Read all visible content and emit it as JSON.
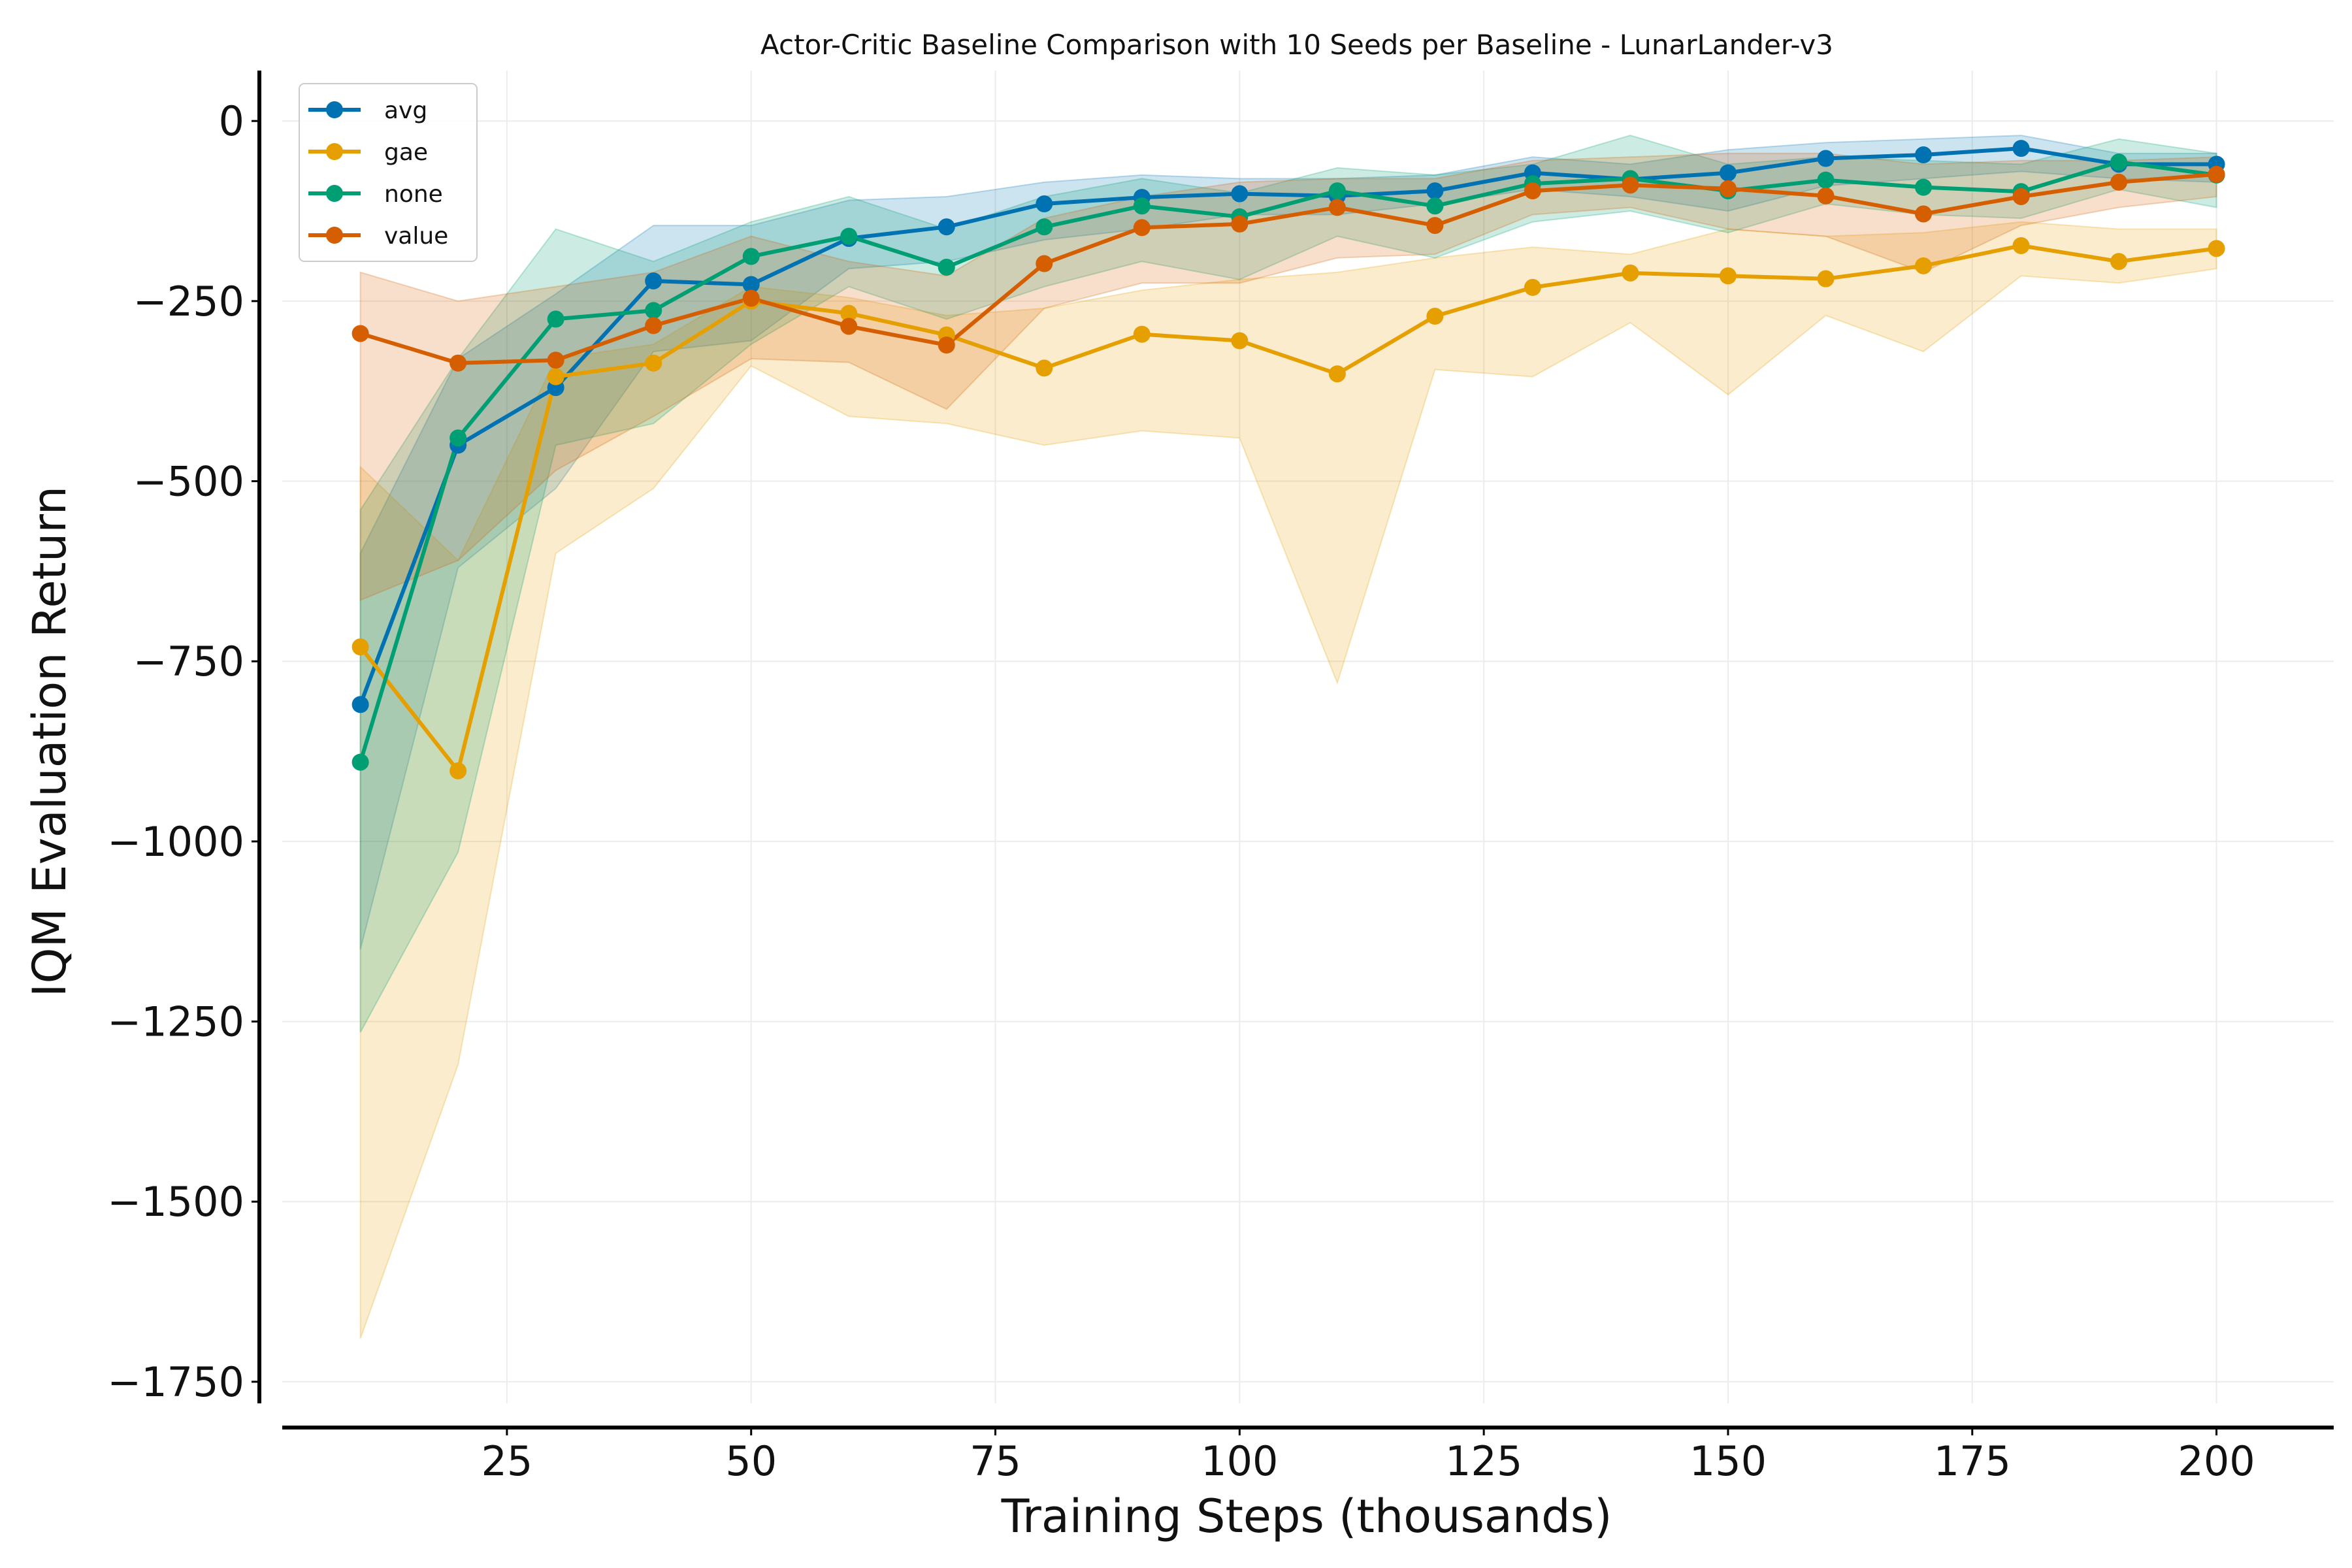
{
  "chart_data": {
    "type": "line",
    "title": "Actor-Critic Baseline Comparison with 10 Seeds per Baseline - LunarLander-v3",
    "xlabel": "Training Steps (thousands)",
    "ylabel": "IQM Evaluation Return",
    "xlim": [
      2,
      212
    ],
    "ylim": [
      -1780,
      70
    ],
    "xticks": [
      25,
      50,
      75,
      100,
      125,
      150,
      175,
      200
    ],
    "yticks": [
      0,
      -250,
      -500,
      -750,
      -1000,
      -1250,
      -1500,
      -1750
    ],
    "xtick_labels": [
      "25",
      "50",
      "75",
      "100",
      "125",
      "150",
      "175",
      "200"
    ],
    "ytick_labels": [
      "0",
      "−250",
      "−500",
      "−750",
      "−1000",
      "−1250",
      "−1500",
      "−1750"
    ],
    "grid": true,
    "legend_position": "top-left",
    "x": [
      10,
      20,
      30,
      40,
      50,
      60,
      70,
      80,
      90,
      100,
      110,
      120,
      130,
      140,
      150,
      160,
      170,
      180,
      190,
      200
    ],
    "series": [
      {
        "name": "avg",
        "color": "#0072b2",
        "values": [
          -810,
          -450,
          -370,
          -222,
          -227,
          -163,
          -147,
          -115,
          -106,
          -101,
          -104,
          -97,
          -72,
          -81,
          -72,
          -52,
          -47,
          -38,
          -60,
          -60
        ],
        "lower": [
          -1150,
          -620,
          -510,
          -320,
          -305,
          -205,
          -195,
          -165,
          -150,
          -130,
          -130,
          -115,
          -95,
          -105,
          -125,
          -90,
          -80,
          -70,
          -80,
          -85
        ],
        "upper": [
          -600,
          -330,
          -240,
          -145,
          -145,
          -110,
          -105,
          -85,
          -75,
          -80,
          -80,
          -75,
          -50,
          -60,
          -40,
          -30,
          -25,
          -20,
          -45,
          -45
        ]
      },
      {
        "name": "gae",
        "color": "#e69f00",
        "values": [
          -730,
          -902,
          -355,
          -336,
          -250,
          -267,
          -297,
          -343,
          -296,
          -305,
          -351,
          -271,
          -231,
          -211,
          -215,
          -219,
          -201,
          -173,
          -195,
          -177
        ],
        "lower": [
          -1690,
          -1310,
          -600,
          -510,
          -340,
          -410,
          -420,
          -450,
          -430,
          -440,
          -780,
          -345,
          -355,
          -280,
          -380,
          -270,
          -320,
          -215,
          -225,
          -205
        ],
        "upper": [
          -480,
          -610,
          -330,
          -310,
          -230,
          -245,
          -270,
          -260,
          -235,
          -220,
          -210,
          -190,
          -175,
          -185,
          -150,
          -160,
          -155,
          -140,
          -150,
          -150
        ]
      },
      {
        "name": "none",
        "color": "#009e73",
        "values": [
          -890,
          -440,
          -275,
          -263,
          -188,
          -160,
          -203,
          -147,
          -118,
          -133,
          -97,
          -118,
          -87,
          -80,
          -97,
          -82,
          -92,
          -98,
          -57,
          -75
        ],
        "lower": [
          -1265,
          -1015,
          -450,
          -420,
          -310,
          -230,
          -275,
          -230,
          -195,
          -220,
          -160,
          -190,
          -140,
          -125,
          -155,
          -115,
          -130,
          -135,
          -95,
          -120
        ],
        "upper": [
          -540,
          -330,
          -150,
          -195,
          -140,
          -105,
          -150,
          -105,
          -80,
          -100,
          -65,
          -75,
          -60,
          -20,
          -60,
          -50,
          -55,
          -60,
          -25,
          -45
        ]
      },
      {
        "name": "value",
        "color": "#d55e00",
        "values": [
          -295,
          -336,
          -332,
          -284,
          -246,
          -285,
          -311,
          -198,
          -148,
          -143,
          -120,
          -145,
          -97,
          -89,
          -94,
          -104,
          -129,
          -105,
          -85,
          -74
        ],
        "lower": [
          -665,
          -610,
          -485,
          -410,
          -330,
          -335,
          -400,
          -260,
          -225,
          -225,
          -190,
          -185,
          -130,
          -120,
          -150,
          -160,
          -210,
          -145,
          -120,
          -105
        ],
        "upper": [
          -210,
          -250,
          -230,
          -210,
          -160,
          -195,
          -215,
          -135,
          -105,
          -85,
          -80,
          -80,
          -55,
          -50,
          -45,
          -45,
          -60,
          -55,
          -55,
          -50
        ]
      }
    ]
  }
}
